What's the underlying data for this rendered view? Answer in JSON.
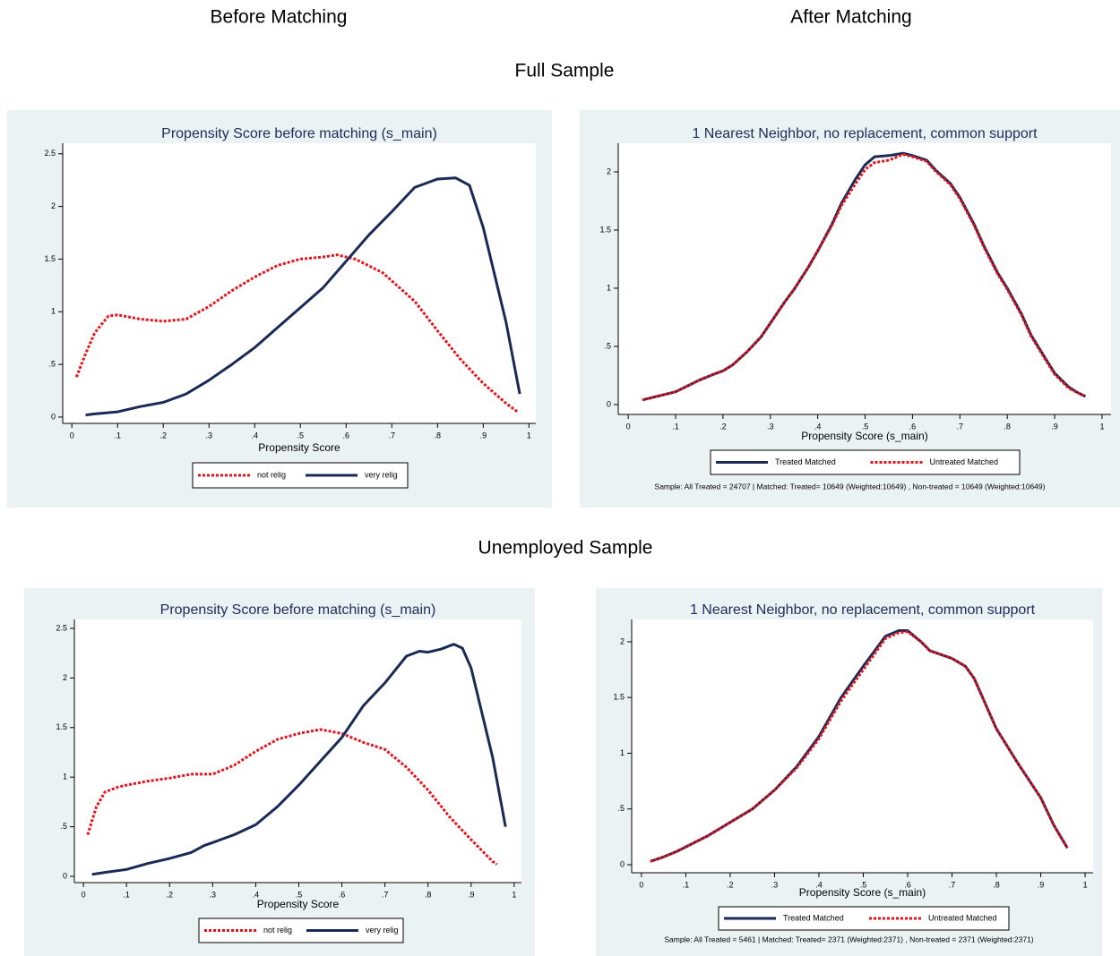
{
  "headings": {
    "before": "Before Matching",
    "after": "After Matching",
    "full": "Full Sample",
    "unemployed": "Unemployed Sample"
  },
  "chart_data": [
    {
      "type": "line",
      "title": "Propensity Score before matching (s_main)",
      "x_label": "Propensity Score",
      "xlim": [
        -0.02,
        1.015
      ],
      "ylim": [
        -0.06,
        2.6
      ],
      "xticks": [
        0,
        {
          "value": 0.1,
          "label": ".1"
        },
        {
          "value": 0.2,
          "label": ".2"
        },
        {
          "value": 0.3,
          "label": ".3"
        },
        {
          "value": 0.4,
          "label": ".4"
        },
        {
          "value": 0.5,
          "label": ".5"
        },
        {
          "value": 0.6,
          "label": ".6"
        },
        {
          "value": 0.7,
          "label": ".7"
        },
        {
          "value": 0.8,
          "label": ".8"
        },
        {
          "value": 0.9,
          "label": ".9"
        },
        1
      ],
      "yticks": [
        0,
        {
          "value": 0.5,
          "label": ".5"
        },
        1,
        1.5,
        2,
        2.5
      ],
      "grid": false,
      "legend": "bottom",
      "series": [
        {
          "name": "not relig",
          "color": "#e8121a",
          "line_style": "dotted",
          "x": [
            0.01,
            0.03,
            0.05,
            0.08,
            0.1,
            0.15,
            0.2,
            0.25,
            0.3,
            0.35,
            0.4,
            0.45,
            0.5,
            0.55,
            0.58,
            0.62,
            0.68,
            0.75,
            0.8,
            0.85,
            0.9,
            0.95,
            0.975
          ],
          "values": [
            0.38,
            0.6,
            0.8,
            0.96,
            0.97,
            0.93,
            0.91,
            0.93,
            1.05,
            1.2,
            1.33,
            1.44,
            1.5,
            1.52,
            1.54,
            1.5,
            1.37,
            1.1,
            0.82,
            0.55,
            0.32,
            0.13,
            0.05
          ]
        },
        {
          "name": "very relig",
          "color": "#1a2a57",
          "line_style": "solid",
          "x": [
            0.03,
            0.05,
            0.1,
            0.15,
            0.2,
            0.25,
            0.3,
            0.35,
            0.4,
            0.45,
            0.5,
            0.55,
            0.6,
            0.65,
            0.7,
            0.75,
            0.8,
            0.84,
            0.87,
            0.9,
            0.95,
            0.98
          ],
          "values": [
            0.02,
            0.03,
            0.05,
            0.1,
            0.14,
            0.22,
            0.35,
            0.5,
            0.66,
            0.85,
            1.04,
            1.23,
            1.48,
            1.73,
            1.95,
            2.18,
            2.26,
            2.27,
            2.2,
            1.8,
            0.9,
            0.22
          ]
        }
      ]
    },
    {
      "type": "line",
      "title": "1 Nearest Neighbor, no replacement, common support",
      "x_label": "Propensity Score (s_main)",
      "xlim": [
        -0.021,
        1.019
      ],
      "ylim": [
        -0.085,
        2.246
      ],
      "xticks": [
        0,
        {
          "value": 0.1,
          "label": ".1"
        },
        {
          "value": 0.2,
          "label": ".2"
        },
        {
          "value": 0.3,
          "label": ".3"
        },
        {
          "value": 0.4,
          "label": ".4"
        },
        {
          "value": 0.5,
          "label": ".5"
        },
        {
          "value": 0.6,
          "label": ".6"
        },
        {
          "value": 0.7,
          "label": ".7"
        },
        {
          "value": 0.8,
          "label": ".8"
        },
        {
          "value": 0.9,
          "label": ".9"
        },
        1
      ],
      "yticks": [
        0,
        {
          "value": 0.5,
          "label": ".5"
        },
        1,
        1.5,
        2
      ],
      "grid": false,
      "legend": "bottom",
      "annotation": "Sample: All Treated = 24707    |    Matched: Treated= 10649 (Weighted:10649)  ,  Non-treated = 10649 (Weighted:10649)",
      "series": [
        {
          "name": "Treated Matched",
          "color": "#1a2a57",
          "line_style": "solid",
          "x": [
            0.03,
            0.05,
            0.08,
            0.1,
            0.13,
            0.15,
            0.18,
            0.2,
            0.22,
            0.25,
            0.28,
            0.3,
            0.33,
            0.35,
            0.38,
            0.4,
            0.43,
            0.45,
            0.48,
            0.5,
            0.52,
            0.55,
            0.58,
            0.6,
            0.63,
            0.65,
            0.68,
            0.7,
            0.73,
            0.75,
            0.78,
            0.8,
            0.83,
            0.85,
            0.88,
            0.9,
            0.93,
            0.95,
            0.965
          ],
          "values": [
            0.04,
            0.06,
            0.09,
            0.11,
            0.17,
            0.21,
            0.26,
            0.29,
            0.34,
            0.45,
            0.58,
            0.7,
            0.88,
            0.99,
            1.18,
            1.32,
            1.55,
            1.73,
            1.94,
            2.06,
            2.13,
            2.14,
            2.16,
            2.14,
            2.1,
            2.01,
            1.9,
            1.78,
            1.55,
            1.37,
            1.13,
            1.0,
            0.78,
            0.6,
            0.4,
            0.27,
            0.15,
            0.1,
            0.07
          ]
        },
        {
          "name": "Untreated Matched",
          "color": "#e8121a",
          "line_style": "dotted",
          "x": [
            0.03,
            0.05,
            0.08,
            0.1,
            0.13,
            0.15,
            0.18,
            0.2,
            0.22,
            0.25,
            0.28,
            0.3,
            0.33,
            0.35,
            0.38,
            0.4,
            0.43,
            0.45,
            0.48,
            0.5,
            0.52,
            0.55,
            0.58,
            0.6,
            0.63,
            0.65,
            0.68,
            0.7,
            0.73,
            0.75,
            0.78,
            0.8,
            0.83,
            0.85,
            0.88,
            0.9,
            0.93,
            0.95,
            0.965
          ],
          "values": [
            0.04,
            0.06,
            0.09,
            0.11,
            0.17,
            0.21,
            0.26,
            0.29,
            0.34,
            0.45,
            0.58,
            0.7,
            0.88,
            0.99,
            1.18,
            1.32,
            1.54,
            1.71,
            1.9,
            2.02,
            2.08,
            2.1,
            2.15,
            2.13,
            2.09,
            2.0,
            1.89,
            1.77,
            1.54,
            1.36,
            1.12,
            0.99,
            0.77,
            0.59,
            0.39,
            0.26,
            0.14,
            0.1,
            0.07
          ]
        }
      ]
    },
    {
      "type": "line",
      "title": "Propensity Score before matching (s_main)",
      "x_label": "Propensity Score",
      "xlim": [
        -0.021,
        1.017
      ],
      "ylim": [
        -0.063,
        2.59
      ],
      "xticks": [
        0,
        {
          "value": 0.1,
          "label": ".1"
        },
        {
          "value": 0.2,
          "label": ".2"
        },
        {
          "value": 0.3,
          "label": ".3"
        },
        {
          "value": 0.4,
          "label": ".4"
        },
        {
          "value": 0.5,
          "label": ".5"
        },
        {
          "value": 0.6,
          "label": ".6"
        },
        {
          "value": 0.7,
          "label": ".7"
        },
        {
          "value": 0.8,
          "label": ".8"
        },
        {
          "value": 0.9,
          "label": ".9"
        },
        1
      ],
      "yticks": [
        0,
        {
          "value": 0.5,
          "label": ".5"
        },
        1,
        1.5,
        2,
        2.5
      ],
      "grid": false,
      "legend": "bottom",
      "series": [
        {
          "name": "not relig",
          "color": "#e8121a",
          "line_style": "dotted",
          "x": [
            0.01,
            0.03,
            0.05,
            0.08,
            0.1,
            0.15,
            0.2,
            0.25,
            0.3,
            0.35,
            0.4,
            0.45,
            0.5,
            0.55,
            0.6,
            0.65,
            0.7,
            0.75,
            0.8,
            0.85,
            0.9,
            0.95,
            0.96
          ],
          "values": [
            0.42,
            0.7,
            0.85,
            0.9,
            0.92,
            0.96,
            0.99,
            1.03,
            1.03,
            1.12,
            1.26,
            1.38,
            1.44,
            1.48,
            1.44,
            1.35,
            1.28,
            1.1,
            0.87,
            0.6,
            0.37,
            0.15,
            0.12
          ]
        },
        {
          "name": "very relig",
          "color": "#1a2a57",
          "line_style": "solid",
          "x": [
            0.02,
            0.05,
            0.1,
            0.15,
            0.2,
            0.25,
            0.28,
            0.3,
            0.35,
            0.4,
            0.45,
            0.5,
            0.55,
            0.6,
            0.65,
            0.7,
            0.75,
            0.78,
            0.8,
            0.83,
            0.86,
            0.88,
            0.9,
            0.95,
            0.98
          ],
          "values": [
            0.02,
            0.04,
            0.07,
            0.13,
            0.18,
            0.24,
            0.31,
            0.34,
            0.42,
            0.52,
            0.7,
            0.92,
            1.16,
            1.4,
            1.72,
            1.95,
            2.22,
            2.27,
            2.26,
            2.29,
            2.34,
            2.3,
            2.1,
            1.2,
            0.5
          ]
        }
      ]
    },
    {
      "type": "line",
      "title": "1 Nearest Neighbor, no replacement, common support",
      "x_label": "Propensity Score (s_main)",
      "xlim": [
        -0.022,
        1.018
      ],
      "ylim": [
        -0.072,
        2.2
      ],
      "xticks": [
        0,
        {
          "value": 0.1,
          "label": ".1"
        },
        {
          "value": 0.2,
          "label": ".2"
        },
        {
          "value": 0.3,
          "label": ".3"
        },
        {
          "value": 0.4,
          "label": ".4"
        },
        {
          "value": 0.5,
          "label": ".5"
        },
        {
          "value": 0.6,
          "label": ".6"
        },
        {
          "value": 0.7,
          "label": ".7"
        },
        {
          "value": 0.8,
          "label": ".8"
        },
        {
          "value": 0.9,
          "label": ".9"
        },
        1
      ],
      "yticks": [
        0,
        {
          "value": 0.5,
          "label": ".5"
        },
        1,
        1.5,
        2
      ],
      "grid": false,
      "legend": "bottom",
      "annotation": "Sample: All Treated = 5461    |    Matched: Treated= 2371 (Weighted:2371)  ,  Non-treated = 2371 (Weighted:2371)",
      "series": [
        {
          "name": "Treated Matched",
          "color": "#1a2a57",
          "line_style": "solid",
          "x": [
            0.02,
            0.05,
            0.08,
            0.1,
            0.15,
            0.2,
            0.25,
            0.3,
            0.35,
            0.4,
            0.45,
            0.5,
            0.55,
            0.58,
            0.6,
            0.63,
            0.65,
            0.7,
            0.73,
            0.75,
            0.8,
            0.85,
            0.9,
            0.93,
            0.96
          ],
          "values": [
            0.03,
            0.07,
            0.12,
            0.16,
            0.26,
            0.38,
            0.5,
            0.67,
            0.88,
            1.15,
            1.5,
            1.78,
            2.05,
            2.1,
            2.1,
            2.0,
            1.92,
            1.85,
            1.78,
            1.67,
            1.22,
            0.9,
            0.6,
            0.35,
            0.15
          ]
        },
        {
          "name": "Untreated Matched",
          "color": "#e8121a",
          "line_style": "dotted",
          "x": [
            0.02,
            0.05,
            0.08,
            0.1,
            0.15,
            0.2,
            0.25,
            0.3,
            0.35,
            0.4,
            0.45,
            0.5,
            0.55,
            0.58,
            0.6,
            0.63,
            0.65,
            0.7,
            0.73,
            0.75,
            0.8,
            0.85,
            0.9,
            0.93,
            0.96
          ],
          "values": [
            0.03,
            0.07,
            0.12,
            0.16,
            0.26,
            0.38,
            0.5,
            0.67,
            0.87,
            1.13,
            1.47,
            1.75,
            2.03,
            2.08,
            2.09,
            2.0,
            1.92,
            1.85,
            1.78,
            1.67,
            1.22,
            0.9,
            0.6,
            0.35,
            0.15
          ]
        }
      ]
    }
  ]
}
